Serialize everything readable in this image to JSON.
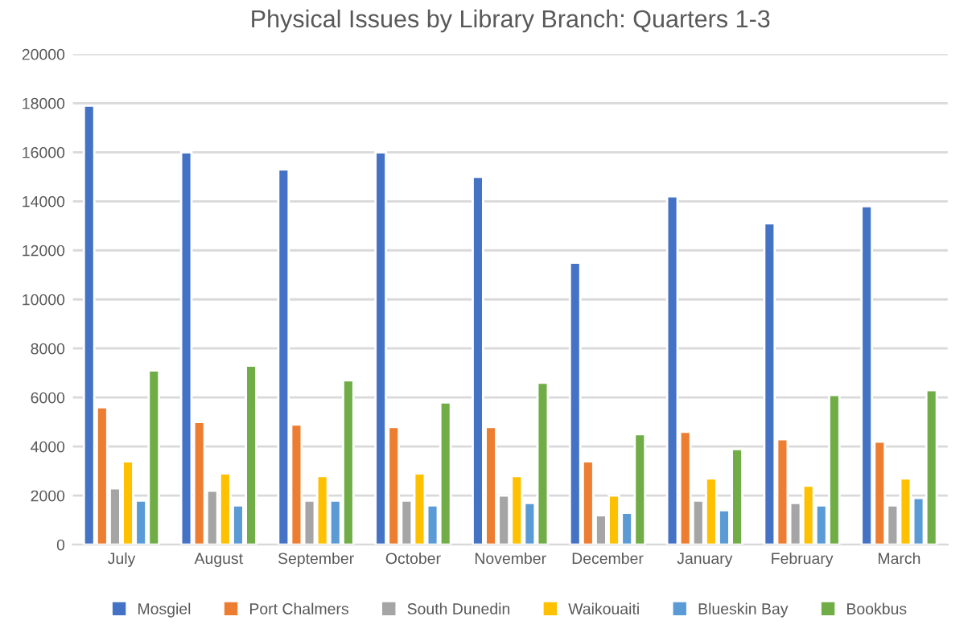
{
  "chart_data": {
    "type": "bar",
    "title": "Physical Issues by Library Branch: Quarters 1-3",
    "categories": [
      "July",
      "August",
      "September",
      "October",
      "November",
      "December",
      "January",
      "February",
      "March"
    ],
    "series": [
      {
        "name": "Mosgiel",
        "color": "#4472c4",
        "values": [
          17900,
          16000,
          15300,
          16000,
          15000,
          11500,
          14200,
          13100,
          13800
        ]
      },
      {
        "name": "Port Chalmers",
        "color": "#ed7d31",
        "values": [
          5600,
          5000,
          4900,
          4800,
          4800,
          3400,
          4600,
          4300,
          4200
        ]
      },
      {
        "name": "South Dunedin",
        "color": "#a5a5a5",
        "values": [
          2300,
          2200,
          1800,
          1800,
          2000,
          1200,
          1800,
          1700,
          1600
        ]
      },
      {
        "name": "Waikouaiti",
        "color": "#ffc000",
        "values": [
          3400,
          2900,
          2800,
          2900,
          2800,
          2000,
          2700,
          2400,
          2700
        ]
      },
      {
        "name": "Blueskin Bay",
        "color": "#5b9bd5",
        "values": [
          1800,
          1600,
          1800,
          1600,
          1700,
          1300,
          1400,
          1600,
          1900
        ]
      },
      {
        "name": "Bookbus",
        "color": "#70ad47",
        "values": [
          7100,
          7300,
          6700,
          5800,
          6600,
          4500,
          3900,
          6100,
          6300
        ]
      }
    ],
    "ylim": [
      0,
      20000
    ],
    "yticks": [
      0,
      2000,
      4000,
      6000,
      8000,
      10000,
      12000,
      14000,
      16000,
      18000,
      20000
    ],
    "grid": "y",
    "legend": "bottom"
  }
}
